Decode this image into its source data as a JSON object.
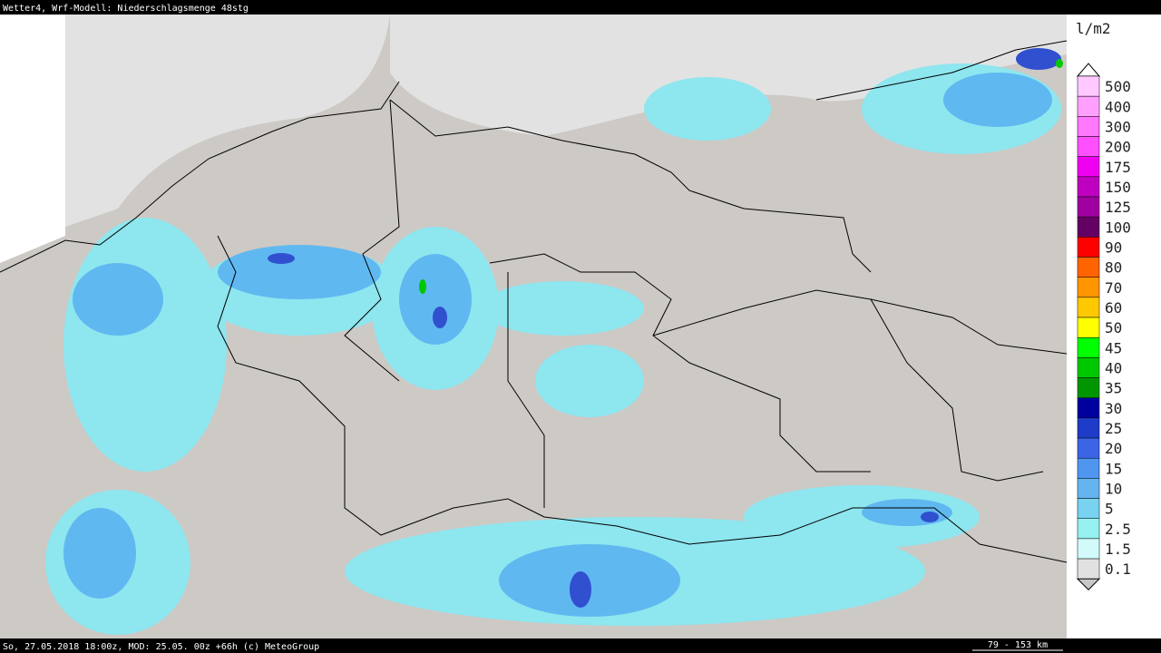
{
  "header": {
    "title": "Wetter4, Wrf-Modell: Niederschlagsmenge 48stg"
  },
  "legend": {
    "unit": "l/m2",
    "items": [
      {
        "label": "500",
        "color": "#ffc8ff"
      },
      {
        "label": "400",
        "color": "#ffa0ff"
      },
      {
        "label": "300",
        "color": "#ff78ff"
      },
      {
        "label": "200",
        "color": "#ff50ff"
      },
      {
        "label": "175",
        "color": "#f000f0"
      },
      {
        "label": "150",
        "color": "#c000c0"
      },
      {
        "label": "125",
        "color": "#a000a0"
      },
      {
        "label": "100",
        "color": "#640064"
      },
      {
        "label": "90",
        "color": "#ff0000"
      },
      {
        "label": "80",
        "color": "#ff6400"
      },
      {
        "label": "70",
        "color": "#ff9600"
      },
      {
        "label": "60",
        "color": "#ffc800"
      },
      {
        "label": "50",
        "color": "#ffff00"
      },
      {
        "label": "45",
        "color": "#00ff00"
      },
      {
        "label": "40",
        "color": "#00c800"
      },
      {
        "label": "35",
        "color": "#009600"
      },
      {
        "label": "30",
        "color": "#0000a0"
      },
      {
        "label": "25",
        "color": "#1e3cc8"
      },
      {
        "label": "20",
        "color": "#3c64e6"
      },
      {
        "label": "15",
        "color": "#5096f0"
      },
      {
        "label": "10",
        "color": "#64b4f0"
      },
      {
        "label": "5",
        "color": "#78d2f0"
      },
      {
        "label": "2.5",
        "color": "#96f0f0"
      },
      {
        "label": "1.5",
        "color": "#d2fafa"
      },
      {
        "label": "0.1",
        "color": "#e1e1e1"
      }
    ]
  },
  "footer": {
    "info": "So, 27.05.2018 18:00z, MOD: 25.05. 00z +66h (c) MeteoGroup",
    "scale": "79 - 153 km"
  }
}
